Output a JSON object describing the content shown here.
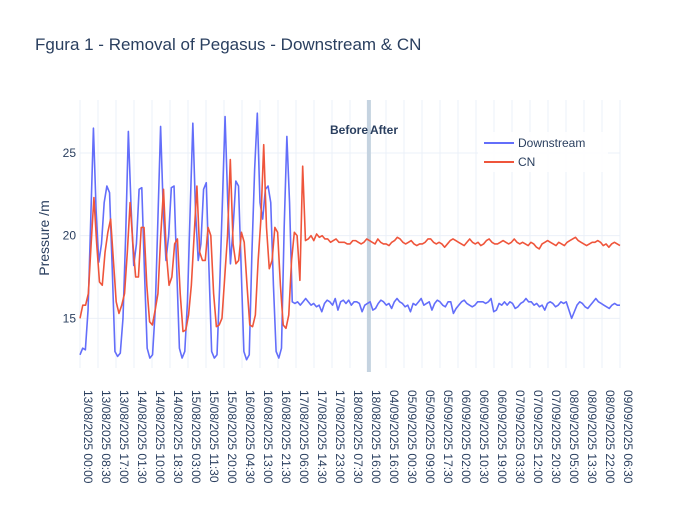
{
  "chart_data": {
    "type": "line",
    "title": "Fgura 1 - Removal of Pegasus - Downstream & CN",
    "xlabel": "",
    "ylabel": "Pressure /m",
    "ylim": [
      12.0,
      28.2
    ],
    "y_ticks": [
      15,
      20,
      25
    ],
    "grid": true,
    "legend_position": "top-right",
    "x_tick_labels": [
      "13/08/2025 00:00",
      "13/08/2025 08:30",
      "13/08/2025 17:00",
      "14/08/2025 01:30",
      "14/08/2025 10:00",
      "14/08/2025 18:30",
      "15/08/2025 03:00",
      "15/08/2025 11:30",
      "15/08/2025 20:00",
      "16/08/2025 04:30",
      "16/08/2025 13:00",
      "16/08/2025 21:30",
      "17/08/2025 06:00",
      "17/08/2025 14:30",
      "17/08/2025 23:00",
      "18/08/2025 07:30",
      "18/08/2025 16:00",
      "04/09/2025 16:00",
      "05/09/2025 00:30",
      "05/09/2025 09:00",
      "05/09/2025 17:30",
      "06/09/2025 02:00",
      "06/09/2025 10:30",
      "06/09/2025 19:00",
      "07/09/2025 03:30",
      "07/09/2025 12:00",
      "07/09/2025 20:30",
      "08/09/2025 05:00",
      "08/09/2025 13:30",
      "08/09/2025 22:00",
      "09/09/2025 06:30"
    ],
    "annotations": [
      {
        "text": "Before",
        "at_tick": "18/08/2025 16:00",
        "anchor": "end"
      },
      {
        "text": "After",
        "at_tick": "18/08/2025 16:00",
        "anchor": "start"
      }
    ],
    "divider_at_tick": "18/08/2025 16:00",
    "divider_color": "#c5d3e0",
    "series": [
      {
        "name": "Downstream",
        "color": "#636efa",
        "y": [
          12.8,
          13.2,
          13.1,
          15.5,
          21.0,
          26.5,
          21.5,
          18.4,
          19.5,
          22.0,
          23.0,
          22.6,
          18.0,
          13.0,
          12.7,
          12.9,
          15.0,
          20.0,
          26.3,
          21.8,
          18.2,
          19.5,
          22.8,
          22.9,
          17.8,
          13.2,
          12.6,
          12.8,
          15.5,
          21.0,
          26.6,
          21.5,
          18.5,
          20.0,
          22.9,
          23.0,
          18.0,
          13.2,
          12.6,
          13.0,
          16.0,
          21.5,
          26.8,
          21.5,
          18.5,
          19.5,
          22.8,
          23.2,
          18.0,
          13.0,
          12.6,
          12.8,
          17.0,
          22.0,
          27.2,
          22.0,
          18.3,
          20.5,
          23.3,
          23.0,
          18.0,
          13.0,
          12.5,
          12.8,
          19.0,
          24.0,
          27.4,
          22.0,
          21.0,
          22.8,
          23.0,
          22.0,
          17.0,
          13.0,
          12.6,
          13.2,
          20.5,
          26.0,
          22.0,
          16.0,
          15.9,
          16.0,
          15.8,
          16.0,
          16.2,
          16.0,
          15.8,
          15.9,
          15.7,
          15.8,
          15.4,
          15.9,
          16.1,
          16.0,
          15.8,
          16.2,
          15.5,
          16.0,
          16.1,
          15.9,
          16.1,
          15.8,
          16.0,
          16.0,
          15.9,
          15.4,
          15.8,
          15.9,
          16.0,
          15.5,
          15.6,
          15.9,
          16.1,
          16.0,
          15.8,
          15.9,
          15.6,
          16.0,
          16.2,
          16.0,
          15.9,
          15.7,
          15.8,
          15.4,
          15.9,
          15.8,
          16.0,
          16.2,
          15.8,
          15.9,
          16.0,
          15.5,
          15.9,
          16.1,
          16.0,
          15.8,
          15.7,
          16.0,
          16.0,
          15.3,
          15.6,
          15.8,
          16.0,
          16.1,
          15.9,
          15.8,
          15.7,
          15.8,
          16.0,
          16.0,
          16.0,
          15.9,
          16.0,
          16.2,
          15.4,
          15.5,
          15.9,
          15.8,
          16.0,
          15.8,
          16.0,
          15.9,
          15.6,
          15.7,
          15.9,
          16.0,
          16.2,
          16.0,
          16.0,
          15.8,
          15.9,
          15.7,
          15.8,
          15.5,
          15.9,
          16.0,
          15.9,
          15.7,
          15.8,
          16.0,
          15.9,
          16.0,
          15.5,
          15.0,
          15.4,
          15.8,
          16.0,
          15.9,
          15.7,
          15.6,
          15.8,
          16.0,
          16.2,
          16.0,
          15.9,
          15.8,
          15.7,
          15.6,
          15.8,
          15.9,
          15.8,
          15.8
        ]
      },
      {
        "name": "CN",
        "color": "#ef553b",
        "y": [
          15.0,
          15.8,
          15.8,
          16.5,
          19.5,
          22.3,
          19.5,
          17.2,
          17.0,
          19.0,
          20.2,
          21.0,
          18.5,
          16.0,
          15.3,
          15.8,
          16.5,
          19.0,
          22.0,
          19.5,
          17.5,
          17.5,
          20.5,
          20.5,
          17.0,
          14.8,
          14.6,
          15.5,
          16.5,
          20.0,
          22.8,
          19.0,
          17.0,
          17.5,
          19.5,
          19.8,
          16.5,
          14.2,
          14.3,
          15.2,
          17.0,
          20.0,
          23.0,
          19.0,
          18.5,
          18.5,
          20.5,
          20.0,
          16.5,
          14.5,
          14.6,
          15.0,
          17.5,
          20.0,
          24.6,
          19.5,
          18.3,
          18.5,
          20.2,
          19.6,
          17.0,
          14.6,
          14.5,
          15.2,
          18.5,
          21.0,
          25.5,
          20.5,
          18.0,
          18.5,
          20.5,
          20.2,
          17.0,
          14.6,
          14.4,
          15.2,
          18.5,
          20.2,
          20.0,
          17.3,
          24.2,
          19.7,
          19.8,
          20.0,
          19.7,
          20.1,
          19.9,
          20.0,
          19.8,
          19.8,
          19.6,
          19.7,
          19.8,
          19.6,
          19.6,
          19.6,
          19.5,
          19.5,
          19.7,
          19.7,
          19.6,
          19.5,
          19.6,
          19.8,
          19.7,
          19.6,
          19.5,
          19.8,
          19.6,
          19.5,
          19.5,
          19.4,
          19.6,
          19.7,
          19.9,
          19.8,
          19.6,
          19.5,
          19.6,
          19.7,
          19.5,
          19.4,
          19.5,
          19.5,
          19.6,
          19.8,
          19.8,
          19.6,
          19.5,
          19.6,
          19.5,
          19.3,
          19.5,
          19.7,
          19.8,
          19.7,
          19.6,
          19.5,
          19.4,
          19.6,
          19.8,
          19.6,
          19.5,
          19.6,
          19.4,
          19.5,
          19.7,
          19.8,
          19.6,
          19.5,
          19.5,
          19.6,
          19.7,
          19.6,
          19.5,
          19.6,
          19.8,
          19.6,
          19.5,
          19.6,
          19.5,
          19.4,
          19.6,
          19.5,
          19.3,
          19.2,
          19.5,
          19.6,
          19.7,
          19.6,
          19.5,
          19.4,
          19.6,
          19.5,
          19.4,
          19.6,
          19.7,
          19.8,
          19.9,
          19.7,
          19.6,
          19.5,
          19.4,
          19.5,
          19.6,
          19.6,
          19.7,
          19.6,
          19.4,
          19.5,
          19.3,
          19.5,
          19.6,
          19.5,
          19.4
        ]
      }
    ]
  }
}
